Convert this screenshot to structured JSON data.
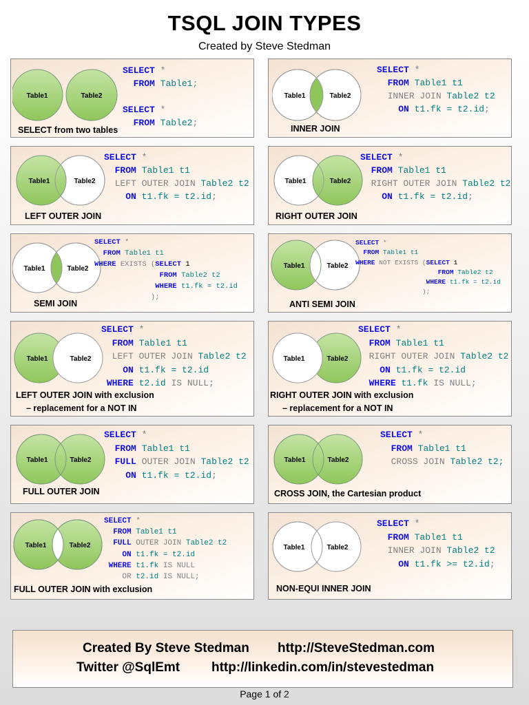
{
  "title": "TSQL JOIN TYPES",
  "subtitle": "Created by Steve Stedman",
  "circle_labels": {
    "t1": "Table1",
    "t2": "Table2"
  },
  "colors": {
    "green": "#8fc65b",
    "green_light": "#c4e4a4",
    "white_fill": "#ffffff",
    "keyword": "#1010e0",
    "identifier": "#008080",
    "gray": "#808080"
  },
  "panels": [
    {
      "caption": "SELECT from two tables"
    },
    {
      "caption": "INNER JOIN"
    },
    {
      "caption": "LEFT OUTER JOIN"
    },
    {
      "caption": "RIGHT OUTER JOIN"
    },
    {
      "caption": "SEMI JOIN"
    },
    {
      "caption": "ANTI SEMI JOIN"
    },
    {
      "caption": "LEFT OUTER JOIN with exclusion",
      "caption2": "– replacement for a NOT IN"
    },
    {
      "caption": "RIGHT OUTER JOIN with exclusion",
      "caption2": "– replacement for a NOT IN"
    },
    {
      "caption": "FULL OUTER JOIN"
    },
    {
      "caption": "CROSS JOIN, the Cartesian product"
    },
    {
      "caption": "FULL OUTER JOIN with exclusion"
    },
    {
      "caption": "NON-EQUI INNER JOIN"
    }
  ],
  "code": {
    "k_select": "SELECT",
    "k_from": "FROM",
    "k_on": "ON",
    "k_where": "WHERE",
    "k_full": "FULL",
    "k_or": "OR",
    "star": "*",
    "semi": ";",
    "t1_plain": "Table1",
    "t2_plain": "Table2",
    "t1": "Table1 t1",
    "t2": "Table2 t2",
    "inner_join": "INNER JOIN",
    "left_outer_join": "LEFT OUTER JOIN",
    "right_outer_join": "RIGHT OUTER JOIN",
    "outer_join": "OUTER JOIN",
    "cross_join": "CROSS JOIN",
    "exists": "EXISTS (",
    "not_exists": "NOT EXISTS (",
    "one": "1",
    "close": ");",
    "is_null": "IS NULL",
    "is_null_semi": "IS NULL;",
    "fk_eq_id": "t1.fk = t2.id",
    "fk_ge_id": "t1.fk >= t2.id",
    "t2id": "t2.id",
    "t1fk": "t1.fk",
    "t2_semi": "Table2 t2;"
  },
  "footer": {
    "line1_left": "Created By Steve Stedman",
    "line1_right": "http://SteveStedman.com",
    "line2_left": "Twitter  @SqlEmt",
    "line2_right": "http://linkedin.com/in/stevestedman"
  },
  "page": "Page 1 of 2"
}
